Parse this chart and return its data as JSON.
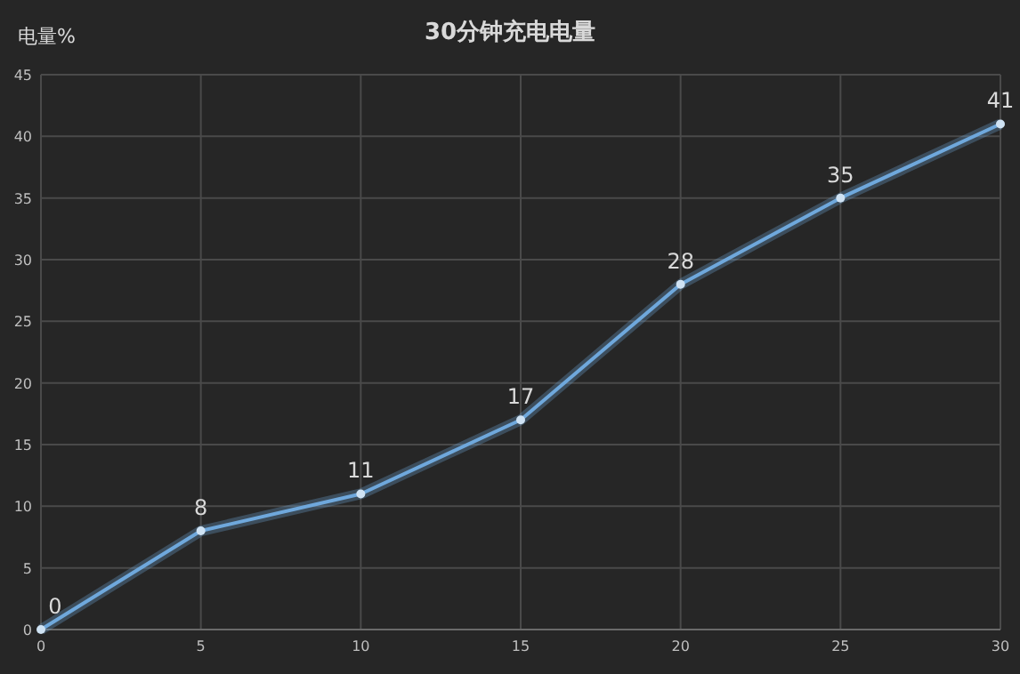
{
  "chart_data": {
    "type": "line",
    "title": "30分钟充电电量",
    "ylabel": "电量%",
    "x": [
      0,
      5,
      10,
      15,
      20,
      25,
      30
    ],
    "series": [
      {
        "color": "#6fa8dc",
        "values": [
          0,
          8,
          11,
          17,
          28,
          35,
          41
        ]
      }
    ],
    "xlim": [
      0,
      30
    ],
    "xticks": [
      0,
      5,
      10,
      15,
      20,
      25,
      30
    ],
    "ylim": [
      0,
      45
    ],
    "yticks": [
      0,
      5,
      10,
      15,
      20,
      25,
      30,
      35,
      40,
      45
    ],
    "grid": true,
    "marker": "circle",
    "data_labels": true
  }
}
